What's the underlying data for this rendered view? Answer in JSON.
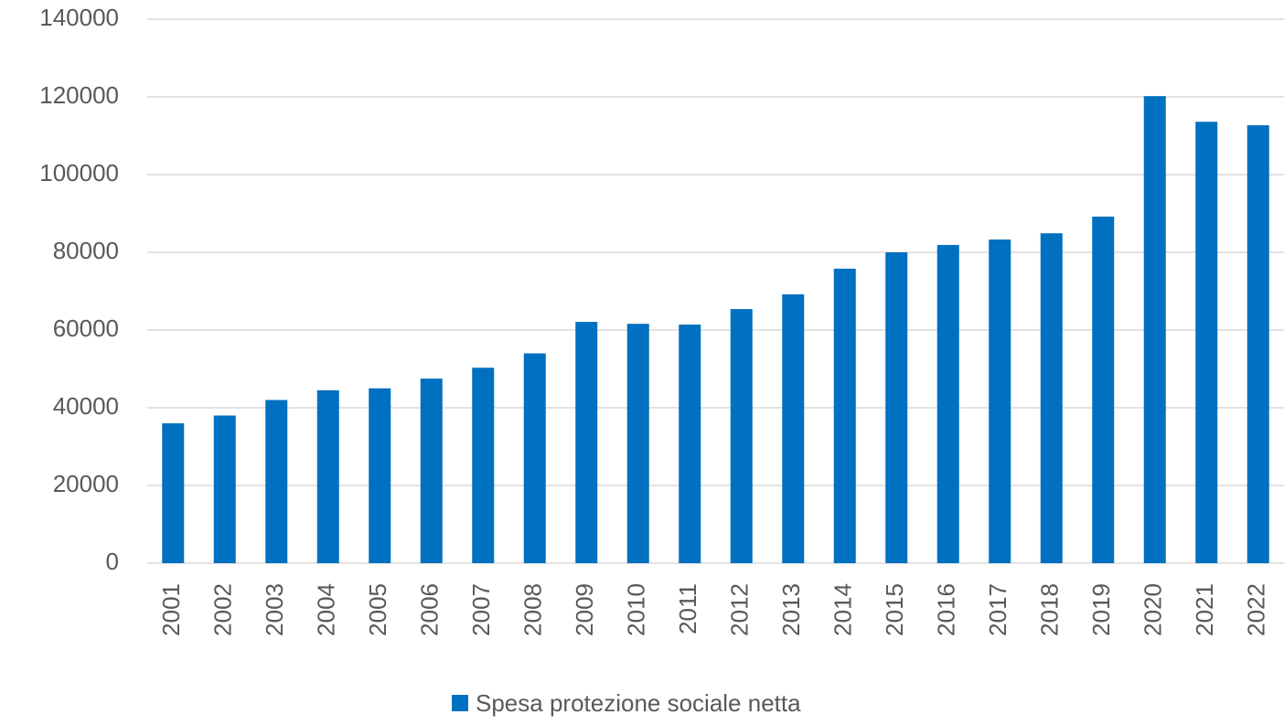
{
  "chart_data": {
    "type": "bar",
    "categories": [
      "2001",
      "2002",
      "2003",
      "2004",
      "2005",
      "2006",
      "2007",
      "2008",
      "2009",
      "2010",
      "2011",
      "2012",
      "2013",
      "2014",
      "2015",
      "2016",
      "2017",
      "2018",
      "2019",
      "2020",
      "2021",
      "2022"
    ],
    "series": [
      {
        "name": "Spesa protezione sociale netta",
        "color": "#0070c0",
        "values": [
          36000,
          38000,
          42000,
          44500,
          45000,
          47500,
          50300,
          54000,
          62100,
          61600,
          61400,
          65400,
          69200,
          75800,
          80000,
          81900,
          83300,
          84900,
          89200,
          120200,
          113600,
          112700
        ]
      }
    ],
    "ylim": [
      0,
      140000
    ],
    "yticks": [
      0,
      20000,
      40000,
      60000,
      80000,
      100000,
      120000,
      140000
    ],
    "grid": true,
    "legend": "bottom"
  }
}
